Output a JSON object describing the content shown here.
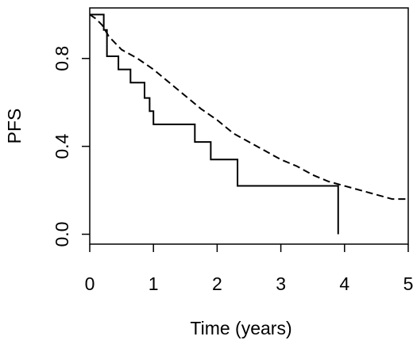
{
  "chart_data": {
    "type": "line",
    "title": "",
    "xlabel": "Time (years)",
    "ylabel": "PFS",
    "xlim": [
      0,
      5
    ],
    "ylim": [
      0,
      1
    ],
    "x_ticks": [
      0,
      1,
      2,
      3,
      4,
      5
    ],
    "x_tick_labels": [
      "0",
      "1",
      "2",
      "3",
      "4",
      "5"
    ],
    "y_ticks": [
      0.0,
      0.4,
      0.8
    ],
    "y_tick_labels": [
      "0.0",
      "0.4",
      "0.8"
    ],
    "grid": false,
    "legend": "none",
    "series": [
      {
        "step": true,
        "style": "solid",
        "color": "#000000",
        "x": [
          0,
          0.15,
          0.22,
          0.27,
          0.45,
          0.64,
          0.86,
          0.94,
          1.0,
          1.65,
          1.9,
          2.32,
          3.9,
          3.9
        ],
        "y": [
          1.0,
          1.0,
          0.93,
          0.81,
          0.75,
          0.69,
          0.62,
          0.56,
          0.5,
          0.42,
          0.34,
          0.22,
          0.22,
          0.0
        ]
      },
      {
        "step": false,
        "style": "dashed",
        "color": "#000000",
        "x": [
          0,
          0.1,
          0.2,
          0.3,
          0.5,
          0.75,
          1.0,
          1.25,
          1.5,
          1.75,
          2.0,
          2.25,
          2.5,
          2.75,
          3.0,
          3.25,
          3.5,
          3.75,
          4.0,
          4.25,
          4.5,
          4.75,
          5.0
        ],
        "y": [
          1.0,
          0.98,
          0.95,
          0.9,
          0.84,
          0.8,
          0.75,
          0.69,
          0.63,
          0.57,
          0.52,
          0.46,
          0.42,
          0.38,
          0.34,
          0.31,
          0.27,
          0.24,
          0.22,
          0.2,
          0.18,
          0.16,
          0.16
        ]
      }
    ]
  }
}
